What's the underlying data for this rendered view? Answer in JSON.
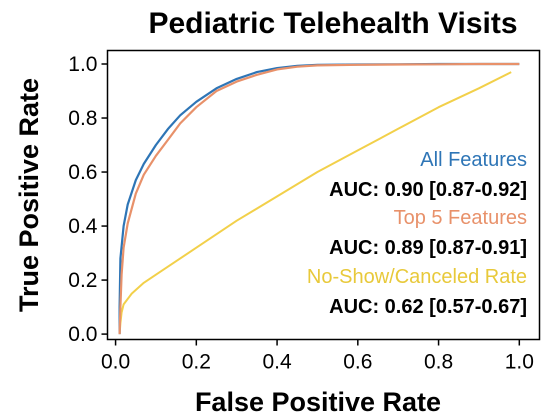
{
  "chart_data": {
    "type": "line",
    "title": "Pediatric Telehealth Visits",
    "xlabel": "False Positive Rate",
    "ylabel": "True Positive Rate",
    "xlim": [
      -0.02,
      1.05
    ],
    "ylim": [
      -0.02,
      1.05
    ],
    "xticks": [
      0.0,
      0.2,
      0.4,
      0.6,
      0.8,
      1.0
    ],
    "xtick_labels": [
      "0.0",
      "0.2",
      "0.4",
      "0.6",
      "0.8",
      "1.0"
    ],
    "yticks": [
      0.0,
      0.2,
      0.4,
      0.6,
      0.8,
      1.0
    ],
    "ytick_labels": [
      "0.0",
      "0.2",
      "0.4",
      "0.6",
      "0.8",
      "1.0"
    ],
    "grid": false,
    "legend_position": "bottom-right",
    "series": [
      {
        "name": "All Features",
        "auc_label": "AUC: 0.90 [0.87-0.92]",
        "color": "#2e75b6",
        "x": [
          0.01,
          0.01,
          0.012,
          0.02,
          0.03,
          0.05,
          0.07,
          0.1,
          0.13,
          0.16,
          0.2,
          0.25,
          0.3,
          0.35,
          0.4,
          0.45,
          0.5,
          0.6,
          0.7,
          0.8,
          0.9,
          1.0
        ],
        "y": [
          0.0,
          0.1,
          0.28,
          0.4,
          0.48,
          0.57,
          0.63,
          0.7,
          0.76,
          0.81,
          0.86,
          0.91,
          0.945,
          0.97,
          0.985,
          0.993,
          0.997,
          0.998,
          0.999,
          1.0,
          1.0,
          1.0
        ]
      },
      {
        "name": "Top 5 Features",
        "auc_label": "AUC: 0.89 [0.87-0.91]",
        "color": "#e8916a",
        "x": [
          0.01,
          0.012,
          0.015,
          0.02,
          0.03,
          0.05,
          0.07,
          0.1,
          0.13,
          0.16,
          0.2,
          0.25,
          0.3,
          0.35,
          0.4,
          0.45,
          0.5,
          0.6,
          0.7,
          0.8,
          0.9,
          1.0
        ],
        "y": [
          0.0,
          0.1,
          0.22,
          0.32,
          0.41,
          0.52,
          0.59,
          0.66,
          0.72,
          0.78,
          0.84,
          0.9,
          0.935,
          0.96,
          0.98,
          0.99,
          0.995,
          0.997,
          0.998,
          0.999,
          1.0,
          1.0
        ]
      },
      {
        "name": "No-Show/Canceled Rate",
        "auc_label": "AUC: 0.62 [0.57-0.67]",
        "color": "#f2d04a",
        "x": [
          0.01,
          0.012,
          0.015,
          0.02,
          0.04,
          0.07,
          0.1,
          0.15,
          0.2,
          0.3,
          0.4,
          0.5,
          0.6,
          0.7,
          0.8,
          0.9,
          0.98
        ],
        "y": [
          0.0,
          0.04,
          0.08,
          0.11,
          0.15,
          0.19,
          0.22,
          0.27,
          0.32,
          0.42,
          0.51,
          0.6,
          0.68,
          0.76,
          0.84,
          0.91,
          0.97
        ]
      }
    ]
  }
}
